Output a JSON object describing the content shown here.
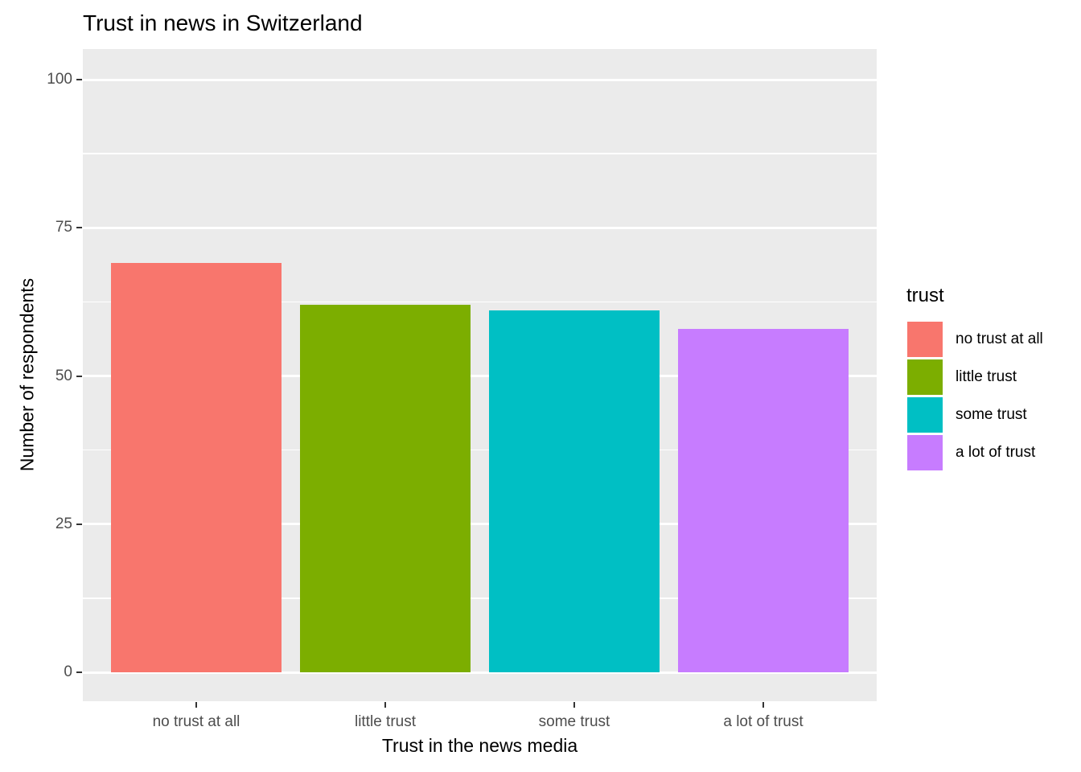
{
  "chart_data": {
    "type": "bar",
    "title": "Trust in news in Switzerland",
    "xlabel": "Trust in the news media",
    "ylabel": "Number of respondents",
    "categories": [
      "no trust at all",
      "little trust",
      "some trust",
      "a lot of trust"
    ],
    "values": [
      69,
      62,
      61,
      58
    ],
    "bar_colors": [
      "#F8766D",
      "#7CAE00",
      "#00BFC4",
      "#C77CFF"
    ],
    "yticks": [
      0,
      25,
      50,
      75,
      100
    ],
    "ylim": [
      0,
      105
    ],
    "grid": "major and minor horizontal gridlines, white on gray panel",
    "panel_background": "#EBEBEB",
    "gridline_color": "#FFFFFF",
    "tick_mark_color": "#333333",
    "tick_label_color": "#4D4D4D",
    "legend": {
      "title": "trust",
      "position": "right",
      "entries": [
        {
          "label": "no trust at all",
          "color": "#F8766D"
        },
        {
          "label": "little trust",
          "color": "#7CAE00"
        },
        {
          "label": "some trust",
          "color": "#00BFC4"
        },
        {
          "label": "a lot of trust",
          "color": "#C77CFF"
        }
      ]
    }
  }
}
